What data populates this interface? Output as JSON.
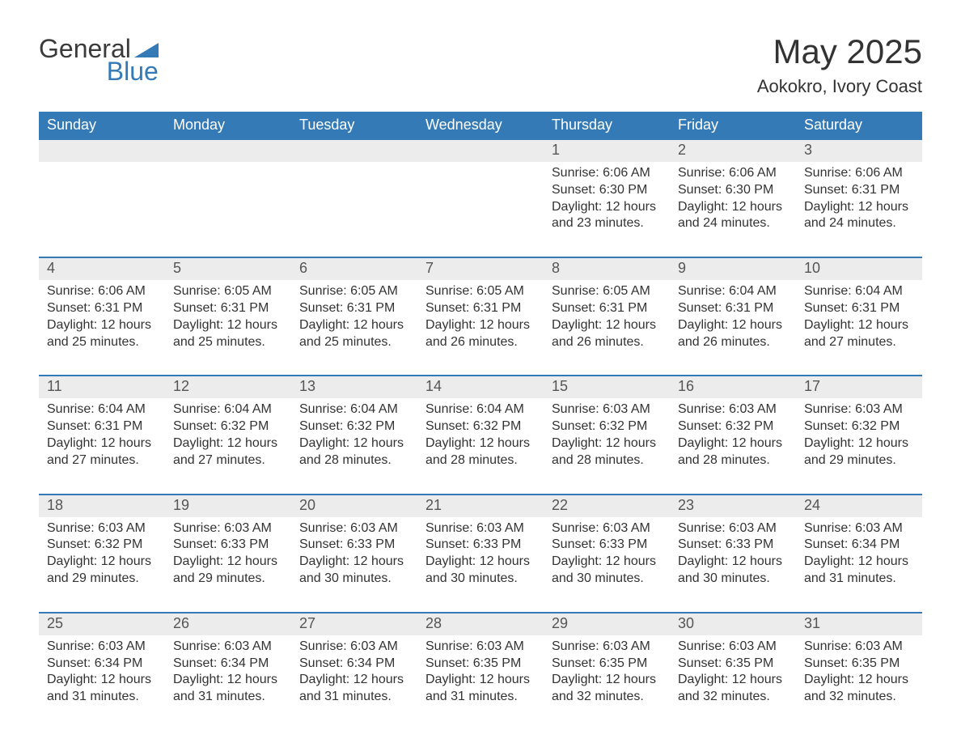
{
  "logo": {
    "word1": "General",
    "word2": "Blue",
    "icon_color": "#337ab7"
  },
  "title": "May 2025",
  "location": "Aokokro, Ivory Coast",
  "colors": {
    "header_bg": "#337ab7",
    "header_text": "#ffffff",
    "daynum_bg": "#ececec",
    "daynum_text": "#555555",
    "body_text": "#333333",
    "week_border": "#337ab7",
    "background": "#ffffff"
  },
  "typography": {
    "title_fontsize": 42,
    "location_fontsize": 22,
    "dayheader_fontsize": 18,
    "daynum_fontsize": 18,
    "cell_fontsize": 16
  },
  "layout": {
    "columns": 7,
    "rows": 5
  },
  "day_headers": [
    "Sunday",
    "Monday",
    "Tuesday",
    "Wednesday",
    "Thursday",
    "Friday",
    "Saturday"
  ],
  "labels": {
    "sunrise": "Sunrise:",
    "sunset": "Sunset:",
    "daylight": "Daylight:"
  },
  "weeks": [
    [
      {
        "day": "",
        "sunrise": "",
        "sunset": "",
        "daylight": ""
      },
      {
        "day": "",
        "sunrise": "",
        "sunset": "",
        "daylight": ""
      },
      {
        "day": "",
        "sunrise": "",
        "sunset": "",
        "daylight": ""
      },
      {
        "day": "",
        "sunrise": "",
        "sunset": "",
        "daylight": ""
      },
      {
        "day": "1",
        "sunrise": "6:06 AM",
        "sunset": "6:30 PM",
        "daylight": "12 hours and 23 minutes."
      },
      {
        "day": "2",
        "sunrise": "6:06 AM",
        "sunset": "6:30 PM",
        "daylight": "12 hours and 24 minutes."
      },
      {
        "day": "3",
        "sunrise": "6:06 AM",
        "sunset": "6:31 PM",
        "daylight": "12 hours and 24 minutes."
      }
    ],
    [
      {
        "day": "4",
        "sunrise": "6:06 AM",
        "sunset": "6:31 PM",
        "daylight": "12 hours and 25 minutes."
      },
      {
        "day": "5",
        "sunrise": "6:05 AM",
        "sunset": "6:31 PM",
        "daylight": "12 hours and 25 minutes."
      },
      {
        "day": "6",
        "sunrise": "6:05 AM",
        "sunset": "6:31 PM",
        "daylight": "12 hours and 25 minutes."
      },
      {
        "day": "7",
        "sunrise": "6:05 AM",
        "sunset": "6:31 PM",
        "daylight": "12 hours and 26 minutes."
      },
      {
        "day": "8",
        "sunrise": "6:05 AM",
        "sunset": "6:31 PM",
        "daylight": "12 hours and 26 minutes."
      },
      {
        "day": "9",
        "sunrise": "6:04 AM",
        "sunset": "6:31 PM",
        "daylight": "12 hours and 26 minutes."
      },
      {
        "day": "10",
        "sunrise": "6:04 AM",
        "sunset": "6:31 PM",
        "daylight": "12 hours and 27 minutes."
      }
    ],
    [
      {
        "day": "11",
        "sunrise": "6:04 AM",
        "sunset": "6:31 PM",
        "daylight": "12 hours and 27 minutes."
      },
      {
        "day": "12",
        "sunrise": "6:04 AM",
        "sunset": "6:32 PM",
        "daylight": "12 hours and 27 minutes."
      },
      {
        "day": "13",
        "sunrise": "6:04 AM",
        "sunset": "6:32 PM",
        "daylight": "12 hours and 28 minutes."
      },
      {
        "day": "14",
        "sunrise": "6:04 AM",
        "sunset": "6:32 PM",
        "daylight": "12 hours and 28 minutes."
      },
      {
        "day": "15",
        "sunrise": "6:03 AM",
        "sunset": "6:32 PM",
        "daylight": "12 hours and 28 minutes."
      },
      {
        "day": "16",
        "sunrise": "6:03 AM",
        "sunset": "6:32 PM",
        "daylight": "12 hours and 28 minutes."
      },
      {
        "day": "17",
        "sunrise": "6:03 AM",
        "sunset": "6:32 PM",
        "daylight": "12 hours and 29 minutes."
      }
    ],
    [
      {
        "day": "18",
        "sunrise": "6:03 AM",
        "sunset": "6:32 PM",
        "daylight": "12 hours and 29 minutes."
      },
      {
        "day": "19",
        "sunrise": "6:03 AM",
        "sunset": "6:33 PM",
        "daylight": "12 hours and 29 minutes."
      },
      {
        "day": "20",
        "sunrise": "6:03 AM",
        "sunset": "6:33 PM",
        "daylight": "12 hours and 30 minutes."
      },
      {
        "day": "21",
        "sunrise": "6:03 AM",
        "sunset": "6:33 PM",
        "daylight": "12 hours and 30 minutes."
      },
      {
        "day": "22",
        "sunrise": "6:03 AM",
        "sunset": "6:33 PM",
        "daylight": "12 hours and 30 minutes."
      },
      {
        "day": "23",
        "sunrise": "6:03 AM",
        "sunset": "6:33 PM",
        "daylight": "12 hours and 30 minutes."
      },
      {
        "day": "24",
        "sunrise": "6:03 AM",
        "sunset": "6:34 PM",
        "daylight": "12 hours and 31 minutes."
      }
    ],
    [
      {
        "day": "25",
        "sunrise": "6:03 AM",
        "sunset": "6:34 PM",
        "daylight": "12 hours and 31 minutes."
      },
      {
        "day": "26",
        "sunrise": "6:03 AM",
        "sunset": "6:34 PM",
        "daylight": "12 hours and 31 minutes."
      },
      {
        "day": "27",
        "sunrise": "6:03 AM",
        "sunset": "6:34 PM",
        "daylight": "12 hours and 31 minutes."
      },
      {
        "day": "28",
        "sunrise": "6:03 AM",
        "sunset": "6:35 PM",
        "daylight": "12 hours and 31 minutes."
      },
      {
        "day": "29",
        "sunrise": "6:03 AM",
        "sunset": "6:35 PM",
        "daylight": "12 hours and 32 minutes."
      },
      {
        "day": "30",
        "sunrise": "6:03 AM",
        "sunset": "6:35 PM",
        "daylight": "12 hours and 32 minutes."
      },
      {
        "day": "31",
        "sunrise": "6:03 AM",
        "sunset": "6:35 PM",
        "daylight": "12 hours and 32 minutes."
      }
    ]
  ]
}
